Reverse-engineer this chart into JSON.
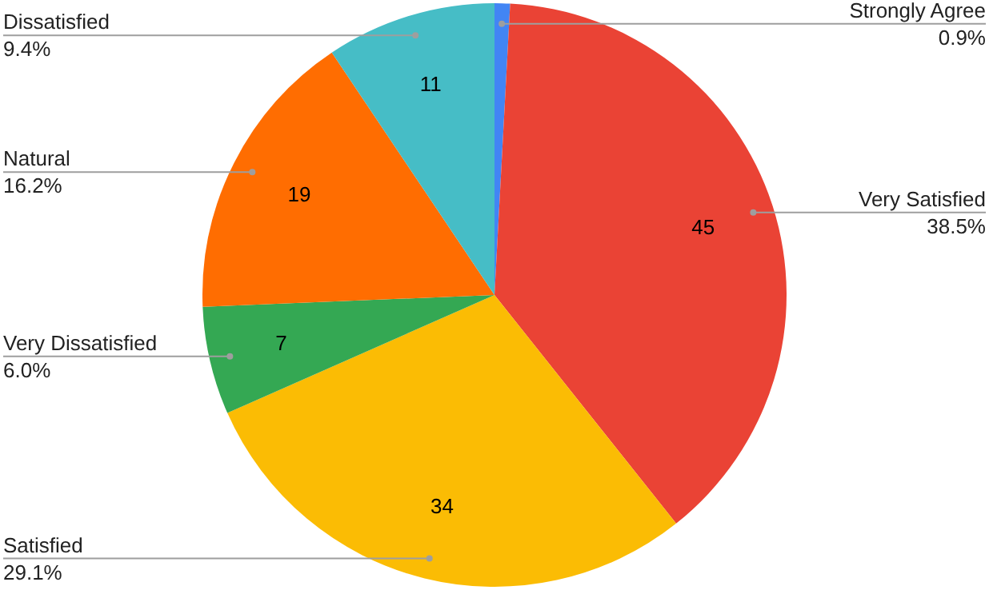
{
  "chart_data": {
    "type": "pie",
    "categories": [
      "Strongly Agree",
      "Very Satisfied",
      "Satisfied",
      "Very Dissatisfied",
      "Natural",
      "Dissatisfied"
    ],
    "values": [
      1,
      45,
      34,
      7,
      19,
      11
    ],
    "colors": [
      "#4285f4",
      "#ea4335",
      "#fbbc04",
      "#34a853",
      "#ff6d01",
      "#46bdc6"
    ],
    "value_labels": [
      null,
      "45",
      "34",
      "7",
      "19",
      "11"
    ],
    "annotations": [
      {
        "text": "0.9%",
        "x": "Strongly Agree"
      },
      {
        "text": "38.5%",
        "x": "Very Satisfied"
      },
      {
        "text": "29.1%",
        "x": "Satisfied"
      },
      {
        "text": "6.0%",
        "x": "Very Dissatisfied"
      },
      {
        "text": "16.2%",
        "x": "Natural"
      },
      {
        "text": "9.4%",
        "x": "Dissatisfied"
      }
    ],
    "legend": false
  }
}
